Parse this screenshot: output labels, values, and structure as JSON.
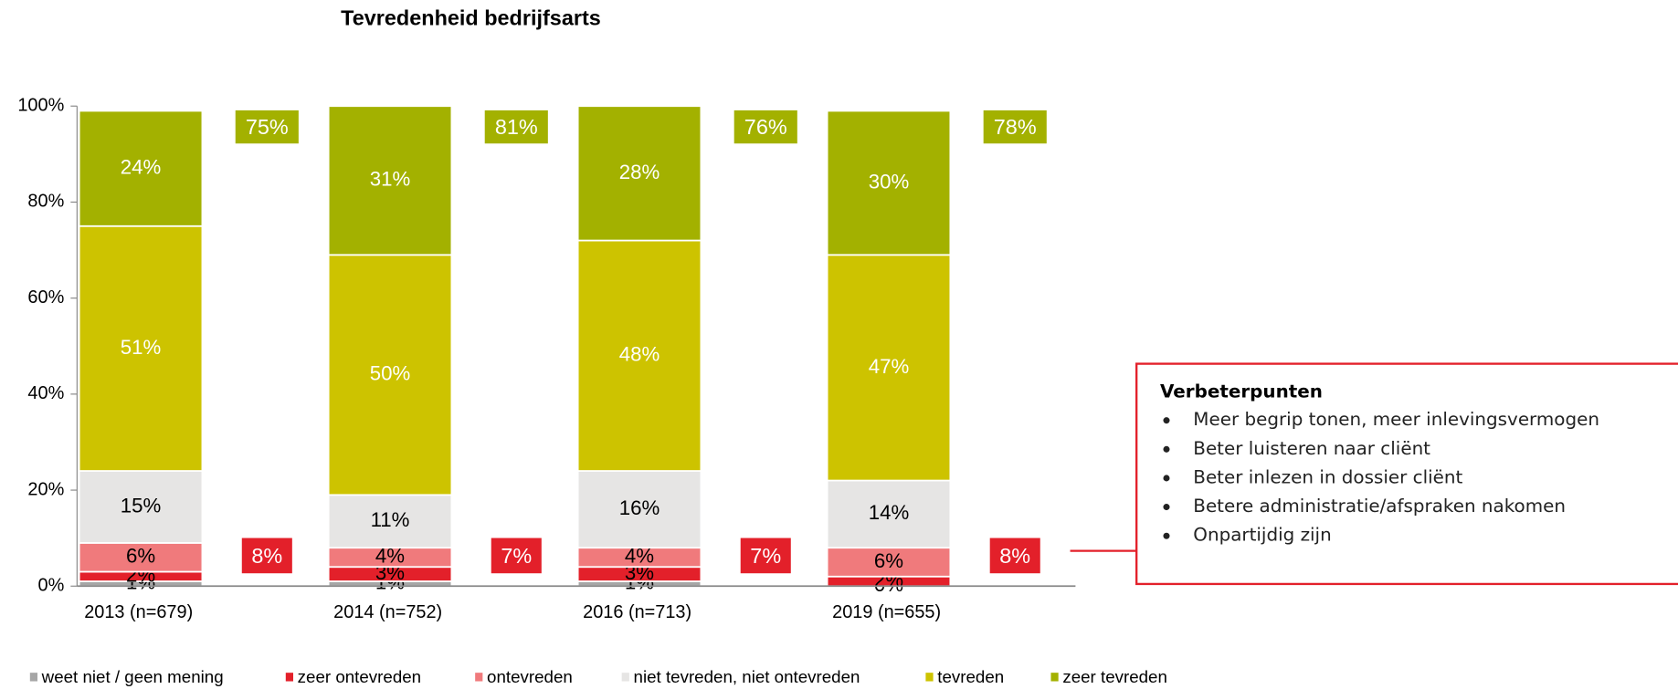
{
  "chart_data": {
    "type": "stacked_bar",
    "title": "Tevredenheid bedrijfsarts",
    "categories": [
      "2013 (n=679)",
      "2014 (n=752)",
      "2016 (n=713)",
      "2019 (n=655)"
    ],
    "series": [
      {
        "name": "weet niet / geen mening",
        "color": "#a6a6a6",
        "values": [
          1,
          1,
          1,
          0
        ],
        "value_labels": [
          "1%",
          "1%",
          "1%",
          "0%"
        ]
      },
      {
        "name": "zeer ontevreden",
        "color": "#e3202a",
        "values": [
          2,
          3,
          3,
          2
        ],
        "value_labels": [
          "2%",
          "3%",
          "3%",
          "2%"
        ]
      },
      {
        "name": "ontevreden",
        "color": "#f07a7c",
        "values": [
          6,
          4,
          4,
          6
        ],
        "value_labels": [
          "6%",
          "4%",
          "4%",
          "6%"
        ]
      },
      {
        "name": "niet tevreden, niet ontevreden",
        "color": "#e6e5e4",
        "values": [
          15,
          11,
          16,
          14
        ],
        "value_labels": [
          "15%",
          "11%",
          "16%",
          "14%"
        ]
      },
      {
        "name": "tevreden",
        "color": "#cdc300",
        "values": [
          51,
          50,
          48,
          47
        ],
        "value_labels": [
          "51%",
          "50%",
          "48%",
          "47%"
        ]
      },
      {
        "name": "zeer tevreden",
        "color": "#a3b100",
        "values": [
          24,
          31,
          28,
          30
        ],
        "value_labels": [
          "24%",
          "31%",
          "28%",
          "30%"
        ]
      }
    ],
    "totals_satisfied": {
      "color": "#a3b100",
      "values": [
        75,
        81,
        76,
        78
      ],
      "value_labels": [
        "75%",
        "81%",
        "76%",
        "78%"
      ]
    },
    "totals_dissatisfied": {
      "color": "#e3202a",
      "values": [
        8,
        7,
        7,
        8
      ],
      "value_labels": [
        "8%",
        "7%",
        "7%",
        "8%"
      ]
    },
    "ylim": [
      0,
      100
    ],
    "yticks": [
      {
        "value": 0,
        "label": "0%"
      },
      {
        "value": 20,
        "label": "20%"
      },
      {
        "value": 40,
        "label": "40%"
      },
      {
        "value": 60,
        "label": "60%"
      },
      {
        "value": 80,
        "label": "80%"
      },
      {
        "value": 100,
        "label": "100%"
      }
    ],
    "legend": "bottom",
    "note": {
      "title": "Verbeterpunten",
      "items": [
        "Meer begrip tonen, meer inlevingsvermogen",
        "Beter luisteren naar cliënt",
        "Beter inlezen in dossier cliënt",
        "Betere administratie/afspraken nakomen",
        "Onpartijdig zijn"
      ]
    }
  }
}
